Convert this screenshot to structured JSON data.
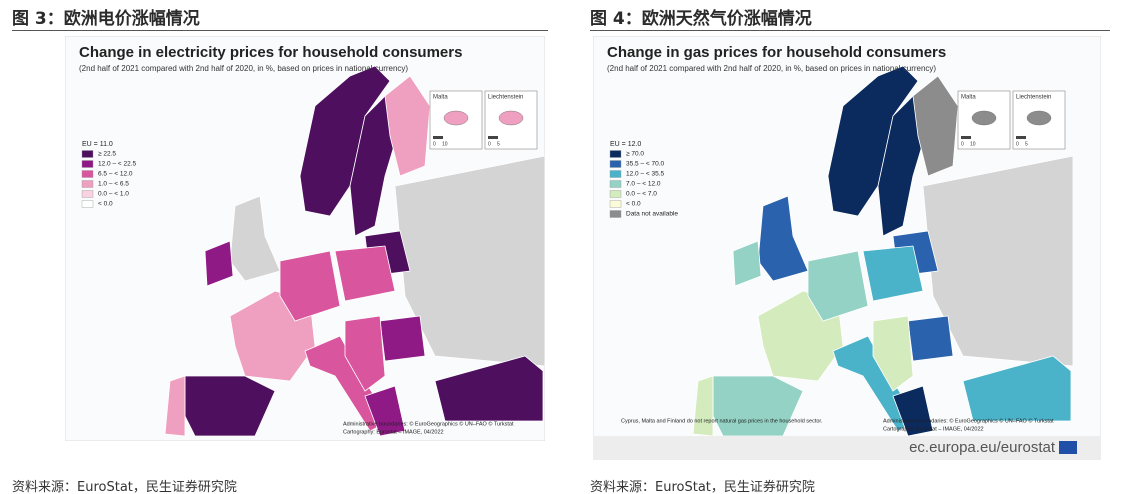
{
  "figures": [
    {
      "caption": "图 3：欧洲电价涨幅情况",
      "map": {
        "title": "Change in electricity prices for household consumers",
        "subtitle": "(2nd half of 2021 compared with 2nd half of 2020, in %, based on prices in national currency)",
        "legend_title": "EU = 11.0",
        "legend": [
          {
            "label": "≥ 22.5",
            "color": "#4d0f5e"
          },
          {
            "label": "12.0 – < 22.5",
            "color": "#8f1a86"
          },
          {
            "label": "6.5 – < 12.0",
            "color": "#d9559e"
          },
          {
            "label": "1.0 – < 6.5",
            "color": "#ef9fbf"
          },
          {
            "label": "0.0 – < 1.0",
            "color": "#f8d3df"
          },
          {
            "label": "< 0.0",
            "color": "#ffffff"
          }
        ],
        "insets": [
          {
            "name": "Malta",
            "scale": [
              "0",
              "10"
            ]
          },
          {
            "name": "Liechtenstein",
            "scale": [
              "0",
              "5"
            ]
          }
        ],
        "credits": [
          "Administrative boundaries: © EuroGeographics © UN–FAO © Turkstat",
          "Cartography: Eurostat – IMAGE, 04/2022"
        ]
      },
      "source": "资料来源：EuroStat，民生证券研究院"
    },
    {
      "caption": "图 4：欧洲天然气价涨幅情况",
      "map": {
        "title": "Change in gas prices for household consumers",
        "subtitle": "(2nd half of 2021 compared with 2nd half of 2020, in %, based on prices in national currency)",
        "legend_title": "EU = 12.0",
        "legend": [
          {
            "label": "≥ 70.0",
            "color": "#0b2a5e"
          },
          {
            "label": "35.5 – < 70.0",
            "color": "#2a62ae"
          },
          {
            "label": "12.0 – < 35.5",
            "color": "#4bb3c9"
          },
          {
            "label": "7.0 – < 12.0",
            "color": "#93d2c4"
          },
          {
            "label": "0.0 – < 7.0",
            "color": "#d4ebbd"
          },
          {
            "label": "< 0.0",
            "color": "#fbfbd9"
          },
          {
            "label": "Data not available",
            "color": "#8c8c8c"
          }
        ],
        "insets": [
          {
            "name": "Malta",
            "scale": [
              "0",
              "10"
            ]
          },
          {
            "name": "Liechtenstein",
            "scale": [
              "0",
              "5"
            ]
          }
        ],
        "footnote": "Cyprus, Malta and Finland do not report natural gas prices in the household sector.",
        "credits": [
          "Administrative boundaries: © EuroGeographics © UN–FAO © Turkstat",
          "Cartography: Eurostat – IMAGE, 04/2022"
        ],
        "branding": "ec.europa.eu/eurostat"
      },
      "source": "资料来源：EuroStat，民生证券研究院"
    }
  ]
}
